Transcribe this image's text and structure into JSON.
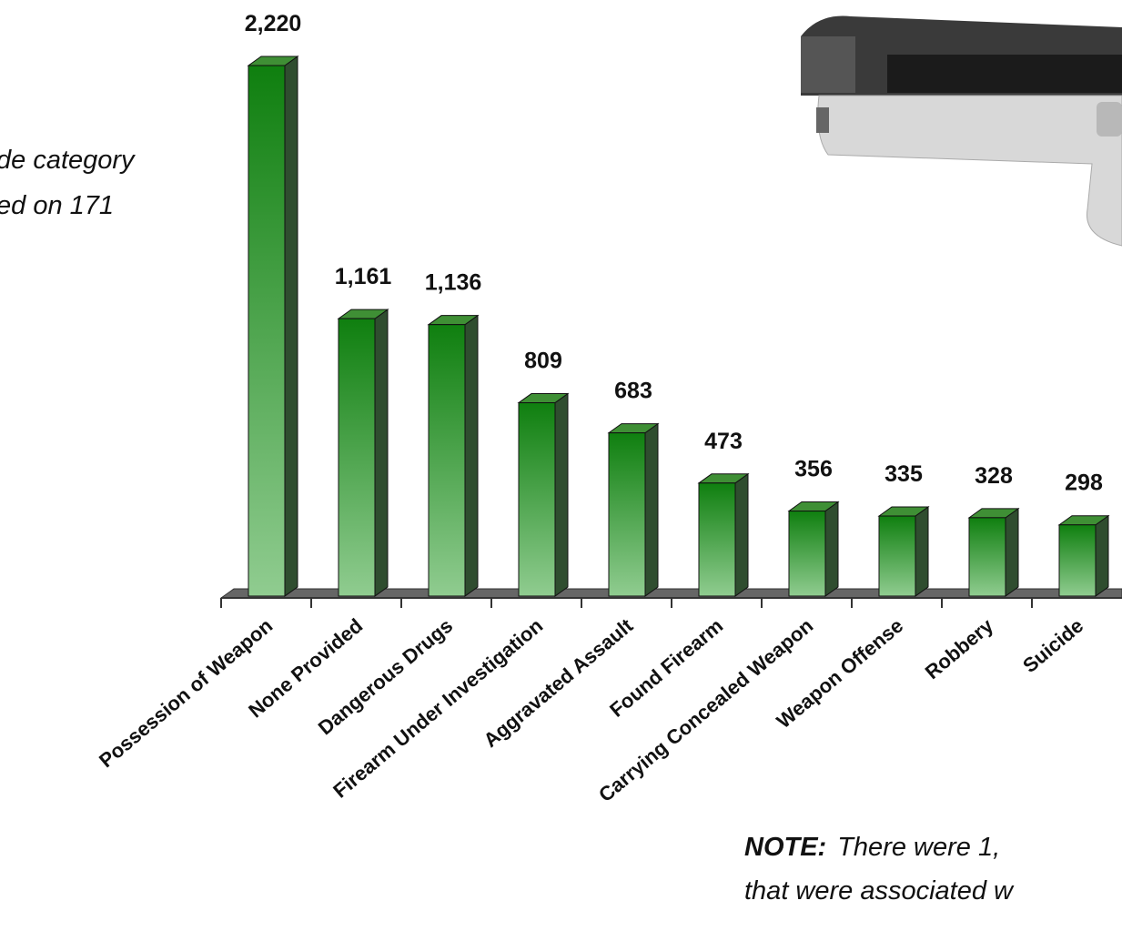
{
  "chart_data": {
    "type": "bar",
    "categories": [
      "Possession of Weapon",
      "None Provided",
      "Dangerous Drugs",
      "Firearm Under Investigation",
      "Aggravated Assault",
      "Found Firearm",
      "Carrying Concealed Weapon",
      "Weapon Offense",
      "Robbery",
      "Suicide"
    ],
    "values": [
      2220,
      1161,
      1136,
      809,
      683,
      473,
      356,
      335,
      328,
      298
    ],
    "value_labels": [
      "2,220",
      "1,161",
      "1,136",
      "809",
      "683",
      "473",
      "356",
      "335",
      "328",
      "298"
    ],
    "color": "#0f7f0f",
    "annotations": [
      "de category",
      "ed on 171"
    ],
    "note": {
      "label": "NOTE:",
      "lines": [
        "There were 1,",
        "that were associated w"
      ]
    }
  }
}
